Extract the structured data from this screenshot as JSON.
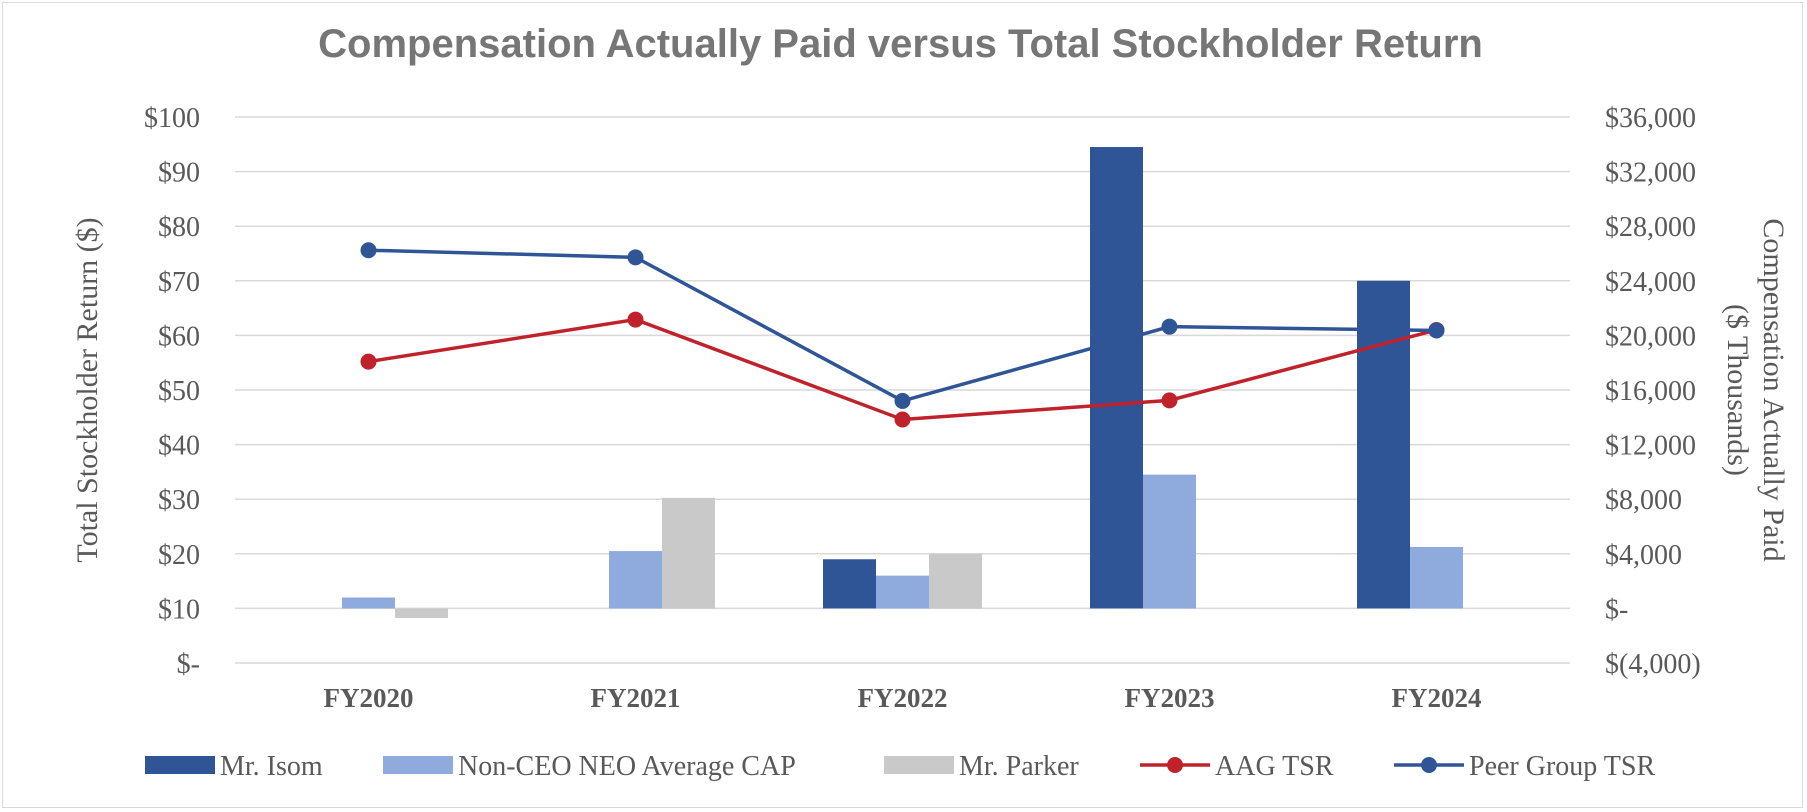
{
  "chart_data": {
    "type": "bar",
    "title": "Compensation Actually Paid versus Total Stockholder Return",
    "categories": [
      "FY2020",
      "FY2021",
      "FY2022",
      "FY2023",
      "FY2024"
    ],
    "left_axis": {
      "label": "Total Stockholder Return ($)",
      "ylim": [
        0,
        100
      ],
      "ticks": [
        0,
        10,
        20,
        30,
        40,
        50,
        60,
        70,
        80,
        90,
        100
      ],
      "tick_labels": [
        "$-",
        "$10",
        "$20",
        "$30",
        "$40",
        "$50",
        "$60",
        "$70",
        "$80",
        "$90",
        "$100"
      ]
    },
    "right_axis": {
      "label_lines": [
        "Compensation Actually Paid",
        "($ Thousands)"
      ],
      "ylim": [
        -4000,
        36000
      ],
      "ticks": [
        -4000,
        0,
        4000,
        8000,
        12000,
        16000,
        20000,
        24000,
        28000,
        32000,
        36000
      ],
      "tick_labels": [
        "$(4,000)",
        "$-",
        "$4,000",
        "$8,000",
        "$12,000",
        "$16,000",
        "$20,000",
        "$24,000",
        "$28,000",
        "$32,000",
        "$36,000"
      ]
    },
    "grid": true,
    "legend_position": "bottom",
    "bar_series": [
      {
        "name": "Mr. Isom",
        "axis": "right",
        "color": "#2f5597",
        "values": [
          null,
          null,
          3600,
          33800,
          24000
        ]
      },
      {
        "name": "Non-CEO NEO Average CAP",
        "axis": "right",
        "color": "#8faadc",
        "values": [
          800,
          4200,
          2400,
          9800,
          4500
        ]
      },
      {
        "name": "Mr. Parker",
        "axis": "right",
        "color": "#c9c9c9",
        "values": [
          -700,
          8100,
          4000,
          null,
          null
        ]
      }
    ],
    "line_series": [
      {
        "name": "AAG TSR",
        "axis": "left",
        "color": "#c0222c",
        "values": [
          55.2,
          62.9,
          44.6,
          48.1,
          61.0
        ]
      },
      {
        "name": "Peer Group TSR",
        "axis": "left",
        "color": "#2f5597",
        "values": [
          75.6,
          74.3,
          48.0,
          61.6,
          60.9
        ]
      }
    ]
  }
}
